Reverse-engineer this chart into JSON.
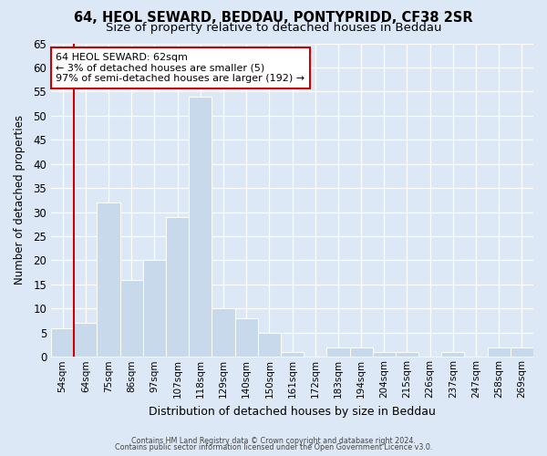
{
  "title": "64, HEOL SEWARD, BEDDAU, PONTYPRIDD, CF38 2SR",
  "subtitle": "Size of property relative to detached houses in Beddau",
  "xlabel": "Distribution of detached houses by size in Beddau",
  "ylabel": "Number of detached properties",
  "bar_labels": [
    "54sqm",
    "64sqm",
    "75sqm",
    "86sqm",
    "97sqm",
    "107sqm",
    "118sqm",
    "129sqm",
    "140sqm",
    "150sqm",
    "161sqm",
    "172sqm",
    "183sqm",
    "194sqm",
    "204sqm",
    "215sqm",
    "226sqm",
    "237sqm",
    "247sqm",
    "258sqm",
    "269sqm"
  ],
  "bar_heights": [
    6,
    7,
    32,
    16,
    20,
    29,
    54,
    10,
    8,
    5,
    1,
    0,
    2,
    2,
    1,
    1,
    0,
    1,
    0,
    2,
    2
  ],
  "bar_color": "#c8d9ec",
  "vline_color": "#cc0000",
  "vline_x_index": 1,
  "ylim": [
    0,
    65
  ],
  "yticks": [
    0,
    5,
    10,
    15,
    20,
    25,
    30,
    35,
    40,
    45,
    50,
    55,
    60,
    65
  ],
  "annotation_title": "64 HEOL SEWARD: 62sqm",
  "annotation_line1": "← 3% of detached houses are smaller (5)",
  "annotation_line2": "97% of semi-detached houses are larger (192) →",
  "annotation_box_facecolor": "#ffffff",
  "annotation_box_edgecolor": "#cc0000",
  "footnote1": "Contains HM Land Registry data © Crown copyright and database right 2024.",
  "footnote2": "Contains public sector information licensed under the Open Government Licence v3.0.",
  "background_color": "#dce8f5",
  "plot_background": "#dce8f5",
  "title_fontsize": 10.5,
  "subtitle_fontsize": 9.5,
  "ylabel_fontsize": 8.5,
  "xlabel_fontsize": 9
}
